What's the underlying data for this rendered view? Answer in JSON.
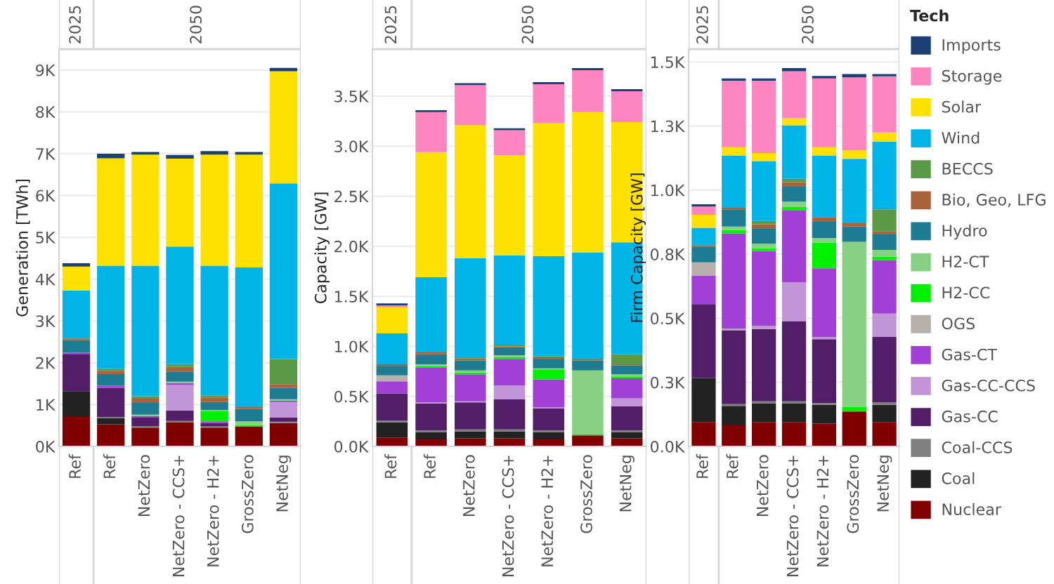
{
  "chart_data": [
    {
      "type": "bar",
      "stacked": true,
      "ylabel": "Generation [TWh]",
      "categories": [
        "Ref",
        "Ref",
        "NetZero",
        "NetZero - CCS+",
        "NetZero - H2+",
        "GrossZero",
        "NetNeg"
      ],
      "annotations": [
        "2025",
        "2050"
      ],
      "grid": "y",
      "tick_labels": "xy",
      "ylim": [
        0,
        9500
      ],
      "yticks": [
        {
          "value": 0,
          "label": "0K"
        },
        {
          "value": 1000,
          "label": "1K"
        },
        {
          "value": 2000,
          "label": "2K"
        },
        {
          "value": 3000,
          "label": "3K"
        },
        {
          "value": 4000,
          "label": "4K"
        },
        {
          "value": 5000,
          "label": "5K"
        },
        {
          "value": 6000,
          "label": "6K"
        },
        {
          "value": 7000,
          "label": "7K"
        },
        {
          "value": 8000,
          "label": "8K"
        },
        {
          "value": 9000,
          "label": "9K"
        }
      ],
      "series": [
        {
          "color": "#800000",
          "values": [
            720,
            530,
            450,
            580,
            450,
            480,
            560
          ]
        },
        {
          "color": "#222222",
          "values": [
            600,
            140,
            null,
            null,
            null,
            null,
            null
          ]
        },
        {
          "color": "#808080",
          "values": [
            null,
            30,
            30,
            30,
            30,
            null,
            30
          ]
        },
        {
          "color": "#521e68",
          "values": [
            880,
            700,
            210,
            250,
            80,
            null,
            100
          ]
        },
        {
          "color": "#c295d8",
          "values": [
            null,
            null,
            null,
            610,
            null,
            null,
            370
          ]
        },
        {
          "color": "#a13fd6",
          "values": [
            40,
            50,
            30,
            50,
            40,
            null,
            30
          ]
        },
        {
          "color": "#00f000",
          "values": [
            null,
            null,
            null,
            null,
            240,
            30,
            null
          ]
        },
        {
          "color": "#88d184",
          "values": [
            null,
            null,
            40,
            30,
            30,
            90,
            40
          ]
        },
        {
          "color": "#1d7c91",
          "values": [
            300,
            280,
            280,
            240,
            190,
            300,
            270
          ]
        },
        {
          "color": "#a8633a",
          "values": [
            40,
            80,
            100,
            110,
            110,
            40,
            90
          ]
        },
        {
          "color": "#5a9a46",
          "values": [
            null,
            50,
            60,
            70,
            50,
            null,
            600
          ]
        },
        {
          "color": "#00b4e8",
          "values": [
            1150,
            2460,
            3120,
            2810,
            3100,
            3340,
            4200
          ]
        },
        {
          "color": "#ffe100",
          "values": [
            570,
            2570,
            2660,
            2100,
            2660,
            2700,
            2680
          ]
        },
        {
          "color": "#1c3f75",
          "values": [
            80,
            110,
            60,
            90,
            80,
            60,
            80
          ]
        }
      ]
    },
    {
      "type": "bar",
      "stacked": true,
      "ylabel": "Capacity [GW]",
      "categories": [
        "Ref",
        "Ref",
        "NetZero",
        "NetZero - CCS+",
        "NetZero - H2+",
        "GrossZero",
        "NetNeg"
      ],
      "annotations": [
        "2025",
        "2050"
      ],
      "grid": "y",
      "tick_labels": "xy",
      "ylim": [
        0,
        3970
      ],
      "yticks": [
        {
          "value": 0,
          "label": "0.0K"
        },
        {
          "value": 500,
          "label": "0.5K"
        },
        {
          "value": 1000,
          "label": "1.0K"
        },
        {
          "value": 1500,
          "label": "1.5K"
        },
        {
          "value": 2000,
          "label": "2.0K"
        },
        {
          "value": 2500,
          "label": "2.5K"
        },
        {
          "value": 3000,
          "label": "3.0K"
        },
        {
          "value": 3500,
          "label": "3.5K"
        }
      ],
      "series": [
        {
          "color": "#800000",
          "values": [
            90,
            70,
            80,
            80,
            70,
            110,
            80
          ]
        },
        {
          "color": "#222222",
          "values": [
            150,
            70,
            70,
            70,
            70,
            null,
            60
          ]
        },
        {
          "color": "#808080",
          "values": [
            20,
            20,
            20,
            20,
            20,
            null,
            20
          ]
        },
        {
          "color": "#521e68",
          "values": [
            270,
            270,
            270,
            300,
            220,
            null,
            240
          ]
        },
        {
          "color": "#c295d8",
          "values": [
            null,
            10,
            10,
            140,
            10,
            null,
            80
          ]
        },
        {
          "color": "#a13fd6",
          "values": [
            120,
            350,
            270,
            260,
            280,
            null,
            200
          ]
        },
        {
          "color": "#b8b0aa",
          "values": [
            60,
            null,
            null,
            null,
            null,
            null,
            null
          ]
        },
        {
          "color": "#00f000",
          "values": [
            null,
            10,
            20,
            20,
            100,
            10,
            20
          ]
        },
        {
          "color": "#88d184",
          "values": [
            null,
            20,
            20,
            20,
            10,
            640,
            20
          ]
        },
        {
          "color": "#1d7c91",
          "values": [
            90,
            100,
            100,
            80,
            90,
            100,
            90
          ]
        },
        {
          "color": "#a8633a",
          "values": [
            20,
            20,
            20,
            10,
            20,
            10,
            10
          ]
        },
        {
          "color": "#5a9a46",
          "values": [
            null,
            null,
            10,
            10,
            10,
            null,
            100
          ]
        },
        {
          "color": "#00b4e8",
          "values": [
            310,
            750,
            990,
            900,
            1000,
            1070,
            1120
          ]
        },
        {
          "color": "#ffe100",
          "values": [
            260,
            1250,
            1330,
            1000,
            1330,
            1400,
            1200
          ]
        },
        {
          "color": "#ff85c0",
          "values": [
            20,
            400,
            400,
            250,
            390,
            420,
            310
          ]
        },
        {
          "color": "#1c3f75",
          "values": [
            20,
            20,
            20,
            20,
            20,
            20,
            20
          ]
        }
      ]
    },
    {
      "type": "bar",
      "stacked": true,
      "ylabel": "Firm Capacity [GW]",
      "categories": [
        "Ref",
        "Ref",
        "NetZero",
        "NetZero - CCS+",
        "NetZero - H2+",
        "GrossZero",
        "NetNeg"
      ],
      "annotations": [
        "2025",
        "2050"
      ],
      "grid": "y",
      "tick_labels": "xy",
      "legend": "right",
      "legend_title": "Tech",
      "ylim": [
        0,
        1550
      ],
      "yticks": [
        {
          "value": 0,
          "label": "0.0K"
        },
        {
          "value": 250,
          "label": "0.3K"
        },
        {
          "value": 500,
          "label": "0.5K"
        },
        {
          "value": 750,
          "label": "0.8K"
        },
        {
          "value": 1000,
          "label": "1.0K"
        },
        {
          "value": 1250,
          "label": "1.3K"
        },
        {
          "value": 1500,
          "label": "1.5K"
        }
      ],
      "series": [
        {
          "name": "Nuclear",
          "color": "#800000",
          "values": [
            95,
            82,
            95,
            95,
            89,
            136,
            95
          ]
        },
        {
          "name": "Coal",
          "color": "#222222",
          "values": [
            172,
            76,
            72,
            72,
            73,
            null,
            67
          ]
        },
        {
          "name": "Coal-CCS",
          "color": "#808080",
          "values": [
            null,
            7,
            9,
            9,
            7,
            null,
            9
          ]
        },
        {
          "name": "Gas-CC",
          "color": "#521e68",
          "values": [
            288,
            288,
            282,
            313,
            249,
            null,
            256
          ]
        },
        {
          "name": "Gas-CC-CCS",
          "color": "#c295d8",
          "values": [
            null,
            7,
            13,
            151,
            9,
            null,
            91
          ]
        },
        {
          "name": "Gas-CT",
          "color": "#a13fd6",
          "values": [
            112,
            371,
            291,
            282,
            268,
            null,
            209
          ]
        },
        {
          "name": "OGS",
          "color": "#b8b0aa",
          "values": [
            51,
            null,
            null,
            null,
            null,
            null,
            null
          ]
        },
        {
          "name": "H2-CC",
          "color": "#00f000",
          "values": [
            null,
            13,
            11,
            13,
            100,
            19,
            13
          ]
        },
        {
          "name": "H2-CT",
          "color": "#88d184",
          "values": [
            null,
            14,
            18,
            20,
            18,
            643,
            27
          ]
        },
        {
          "name": "Hydro",
          "color": "#1d7c91",
          "values": [
            62,
            67,
            58,
            58,
            63,
            60,
            60
          ]
        },
        {
          "name": "Bio, Geo, LFG",
          "color": "#a8633a",
          "values": [
            5,
            6,
            18,
            18,
            19,
            13,
            13
          ]
        },
        {
          "name": "BECCS",
          "color": "#5a9a46",
          "values": [
            null,
            null,
            13,
            13,
            null,
            null,
            85
          ]
        },
        {
          "name": "Wind",
          "color": "#00b4e8",
          "values": [
            68,
            204,
            233,
            209,
            240,
            251,
            264
          ]
        },
        {
          "name": "Solar",
          "color": "#ffe100",
          "values": [
            51,
            32,
            32,
            27,
            32,
            33,
            36
          ]
        },
        {
          "name": "Storage",
          "color": "#ff85c0",
          "values": [
            32,
            260,
            282,
            184,
            269,
            285,
            219
          ]
        },
        {
          "name": "Imports",
          "color": "#1c3f75",
          "values": [
            9,
            9,
            9,
            12,
            9,
            13,
            9
          ]
        }
      ]
    }
  ]
}
